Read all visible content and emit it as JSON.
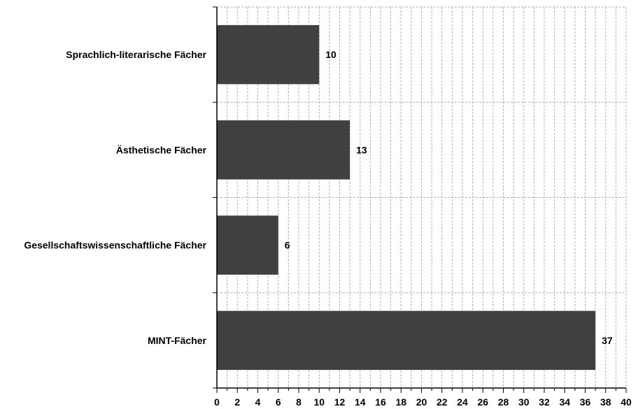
{
  "chart_data": {
    "type": "bar",
    "orientation": "horizontal",
    "categories": [
      "Sprachlich-literarische Fächer",
      "Ästhetische Fächer",
      "Gesellschaftswissenschaftliche Fächer",
      "MINT-Fächer"
    ],
    "values": [
      10,
      13,
      6,
      37
    ],
    "data_labels": [
      "10",
      "13",
      "6",
      "37"
    ],
    "xlim": [
      0,
      40
    ],
    "x_major_step": 2,
    "x_minor_step": 1,
    "tick_labels": [
      "0",
      "2",
      "4",
      "6",
      "8",
      "10",
      "12",
      "14",
      "16",
      "18",
      "20",
      "22",
      "24",
      "26",
      "28",
      "30",
      "32",
      "34",
      "36",
      "38",
      "40"
    ],
    "title": "",
    "xlabel": "",
    "ylabel": "",
    "grid": true,
    "legend": "none",
    "colors": {
      "bar": "#404040",
      "grid": "#b0b0b0",
      "axis": "#000000",
      "background": "#ffffff"
    }
  }
}
